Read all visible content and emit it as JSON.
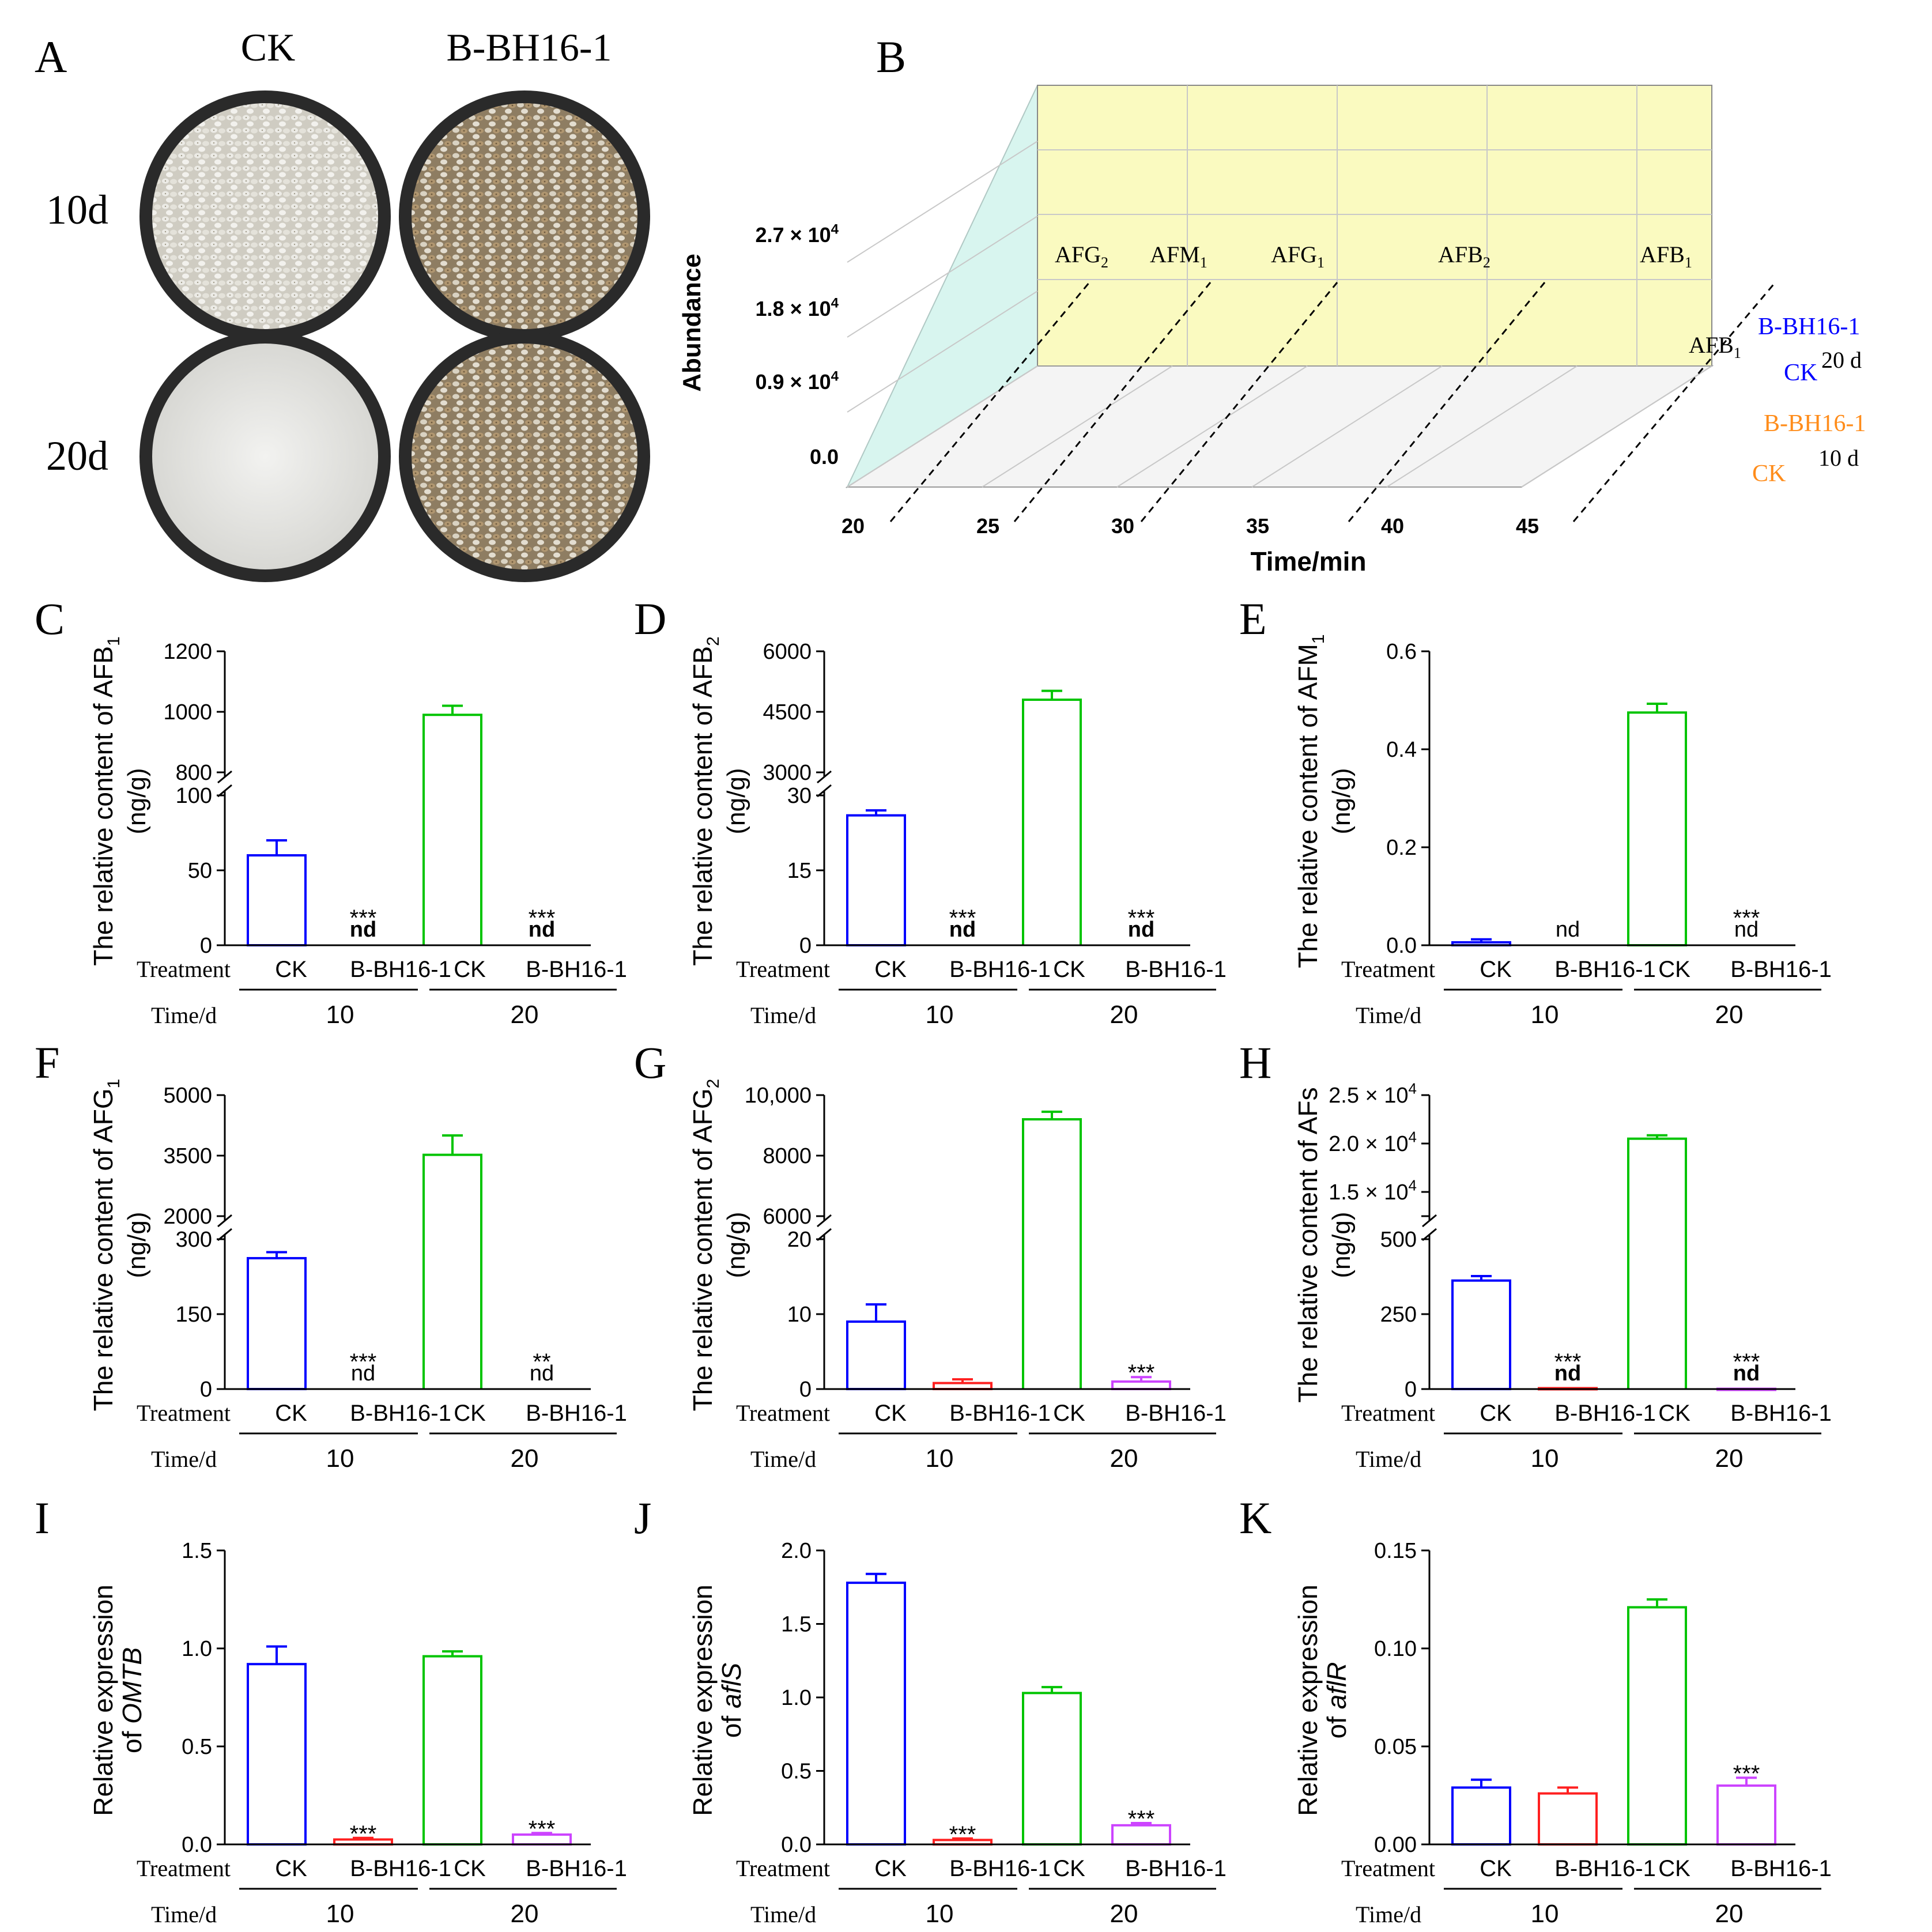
{
  "colors": {
    "blue": "#0000ff",
    "green": "#00c400",
    "red": "#ff2020",
    "magenta": "#cc44ff",
    "orange": "#ff8c1a",
    "wall": "#fafac0",
    "sidewall": "#d8f5ef"
  },
  "panel_a": {
    "letter": "A",
    "col_labels": [
      "CK",
      "B-BH16-1"
    ],
    "row_labels": [
      "10d",
      "20d"
    ]
  },
  "panel_b": {
    "letter": "B",
    "ylabel": "Abundance",
    "xlabel": "Time/min",
    "yticks": [
      "0.0",
      "0.9 × 10",
      "1.8 × 10",
      "2.7 × 10"
    ],
    "ytick_exp": "4",
    "xticks": [
      "20",
      "25",
      "30",
      "35",
      "40",
      "45"
    ],
    "peaks": [
      {
        "base": "AFG",
        "sub": "2"
      },
      {
        "base": "AFM",
        "sub": "1"
      },
      {
        "base": "AFG",
        "sub": "1"
      },
      {
        "base": "AFB",
        "sub": "2"
      },
      {
        "base": "AFB",
        "sub": "1"
      }
    ],
    "afb1_label": {
      "base": "AFB",
      "sub": "1"
    },
    "trace_labels": [
      "B-BH16-1",
      "CK",
      "B-BH16-1",
      "CK"
    ],
    "day_labels": [
      "20 d",
      "10 d"
    ]
  },
  "common": {
    "treatment": "Treatment",
    "time": "Time/d",
    "groups": [
      "CK",
      "B-BH16-1",
      "CK",
      "B-BH16-1"
    ],
    "days": [
      "10",
      "20"
    ]
  },
  "chart_data": [
    {
      "id": "C",
      "type": "bar",
      "ylabel_pre": "The relative  content of AFB",
      "ylabel_sub": "1",
      "ylabel_unit": "(ng/g)",
      "broken": true,
      "low": {
        "min": 0,
        "max": 100,
        "ticks": [
          "0",
          "50",
          "100"
        ]
      },
      "high": {
        "min": 800,
        "max": 1200,
        "ticks": [
          "800",
          "1000",
          "1200"
        ]
      },
      "values": [
        60,
        0,
        990,
        0
      ],
      "errors": [
        10,
        0,
        30,
        0
      ],
      "stars": [
        "",
        "***",
        "",
        "***"
      ],
      "nd": [
        "",
        "nd",
        "",
        "nd"
      ],
      "bold_nd": true
    },
    {
      "id": "D",
      "type": "bar",
      "ylabel_pre": "The relative  content of AFB",
      "ylabel_sub": "2",
      "ylabel_unit": "(ng/g)",
      "broken": true,
      "low": {
        "min": 0,
        "max": 30,
        "ticks": [
          "0",
          "15",
          "30"
        ]
      },
      "high": {
        "min": 3000,
        "max": 6000,
        "ticks": [
          "3000",
          "4500",
          "6000"
        ]
      },
      "values": [
        26,
        0,
        4800,
        0
      ],
      "errors": [
        1,
        0,
        220,
        0
      ],
      "stars": [
        "",
        "***",
        "",
        "***"
      ],
      "nd": [
        "",
        "nd",
        "",
        "nd"
      ],
      "bold_nd": true
    },
    {
      "id": "E",
      "type": "bar",
      "ylabel_pre": "The relative  content of AFM",
      "ylabel_sub": "1",
      "ylabel_unit": "(ng/g)",
      "broken": false,
      "low": {
        "min": 0,
        "max": 0.6,
        "ticks": [
          "0.0",
          "0.2",
          "0.4",
          "0.6"
        ]
      },
      "values": [
        0.006,
        0,
        0.475,
        0
      ],
      "errors": [
        0.006,
        0,
        0.018,
        0
      ],
      "stars": [
        "",
        "",
        "",
        "***"
      ],
      "nd": [
        "",
        "nd",
        "",
        "nd"
      ],
      "bold_nd": false
    },
    {
      "id": "F",
      "type": "bar",
      "ylabel_pre": "The relative  content of AFG",
      "ylabel_sub": "1",
      "ylabel_unit": "(ng/g)",
      "broken": true,
      "low": {
        "min": 0,
        "max": 300,
        "ticks": [
          "0",
          "150",
          "300"
        ]
      },
      "high": {
        "min": 2000,
        "max": 5000,
        "ticks": [
          "2000",
          "3500",
          "5000"
        ]
      },
      "values": [
        262,
        0,
        3520,
        0
      ],
      "errors": [
        12,
        0,
        480,
        0
      ],
      "stars": [
        "",
        "***",
        "",
        "**"
      ],
      "nd": [
        "",
        "nd",
        "",
        "nd"
      ],
      "bold_nd": false
    },
    {
      "id": "G",
      "type": "bar",
      "ylabel_pre": "The relative  content of AFG",
      "ylabel_sub": "2",
      "ylabel_unit": "(ng/g)",
      "broken": true,
      "low": {
        "min": 0,
        "max": 20,
        "ticks": [
          "0",
          "10",
          "20"
        ]
      },
      "high": {
        "min": 6000,
        "max": 10000,
        "ticks": [
          "6000",
          "8000",
          "10,000"
        ]
      },
      "values": [
        9,
        0.8,
        9200,
        1
      ],
      "errors": [
        2.3,
        0.5,
        250,
        0.6
      ],
      "stars": [
        "",
        "",
        "",
        "***"
      ],
      "nd": [
        "",
        "",
        "",
        ""
      ],
      "bold_nd": true
    },
    {
      "id": "H",
      "type": "bar",
      "ylabel_pre": "The relative  content of AFs",
      "ylabel_sub": "",
      "ylabel_unit": "(ng/g)",
      "broken": true,
      "low": {
        "min": 0,
        "max": 500,
        "ticks": [
          "0",
          "250",
          "500"
        ]
      },
      "high": {
        "min": 12500,
        "max": 25000,
        "ticks": [
          "",
          "1.5 × 10",
          "2.0 × 10",
          "2.5 × 10"
        ],
        "tick_values": [
          12500,
          15000,
          20000,
          25000
        ],
        "tick_exp": "4"
      },
      "values": [
        362,
        3,
        20500,
        1
      ],
      "errors": [
        15,
        0,
        350,
        0
      ],
      "stars": [
        "",
        "***",
        "",
        "***"
      ],
      "nd": [
        "",
        "nd",
        "",
        "nd"
      ],
      "bold_nd": true
    },
    {
      "id": "I",
      "type": "bar",
      "ylabel_pre": "Relative expression",
      "ylabel_l2": "of ",
      "ylabel_gene": "OMTB",
      "broken": false,
      "low": {
        "min": 0,
        "max": 1.5,
        "ticks": [
          "0.0",
          "0.5",
          "1.0",
          "1.5"
        ]
      },
      "values": [
        0.92,
        0.025,
        0.96,
        0.05
      ],
      "errors": [
        0.09,
        0.008,
        0.025,
        0.008
      ],
      "stars": [
        "",
        "***",
        "",
        "***"
      ],
      "nd": [
        "",
        "",
        "",
        ""
      ],
      "bold_nd": true
    },
    {
      "id": "J",
      "type": "bar",
      "ylabel_pre": "Relative expression",
      "ylabel_l2": "of ",
      "ylabel_gene": "aflS",
      "broken": false,
      "low": {
        "min": 0,
        "max": 2.0,
        "ticks": [
          "0.0",
          "0.5",
          "1.0",
          "1.5",
          "2.0"
        ]
      },
      "values": [
        1.78,
        0.03,
        1.03,
        0.13
      ],
      "errors": [
        0.06,
        0.01,
        0.04,
        0.015
      ],
      "stars": [
        "",
        "***",
        "",
        "***"
      ],
      "nd": [
        "",
        "",
        "",
        ""
      ],
      "bold_nd": true
    },
    {
      "id": "K",
      "type": "bar",
      "ylabel_pre": "Relative expression",
      "ylabel_l2": "of ",
      "ylabel_gene": "aflR",
      "broken": false,
      "low": {
        "min": 0,
        "max": 0.15,
        "ticks": [
          "0.00",
          "0.05",
          "0.10",
          "0.15"
        ]
      },
      "values": [
        0.029,
        0.026,
        0.121,
        0.03
      ],
      "errors": [
        0.004,
        0.003,
        0.004,
        0.004
      ],
      "stars": [
        "",
        "",
        "",
        "***"
      ],
      "nd": [
        "",
        "",
        "",
        ""
      ],
      "bold_nd": true
    }
  ]
}
